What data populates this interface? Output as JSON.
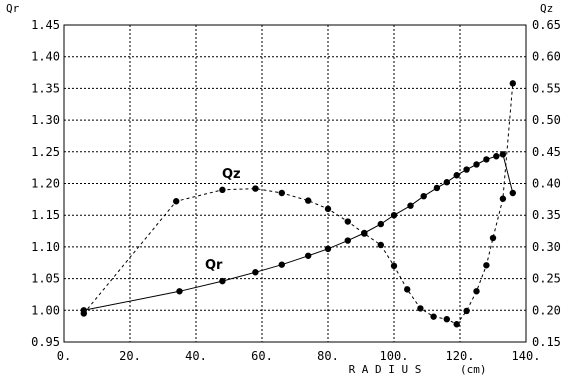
{
  "chart_data": {
    "type": "line",
    "title": "",
    "xlabel": "R A D I U S",
    "xunit": "(cm)",
    "ylabel_left": "Qr",
    "ylabel_right": "Qz",
    "xlim": [
      0,
      140
    ],
    "ylim_left": [
      0.95,
      1.45
    ],
    "ylim_right": [
      0.15,
      0.65
    ],
    "grid": true,
    "x_ticks": [
      0,
      20,
      40,
      60,
      80,
      100,
      120,
      140
    ],
    "x_tick_labels": [
      "0.",
      "20.",
      "40.",
      "60.",
      "80.",
      "100.",
      "120.",
      "140."
    ],
    "y_left_ticks": [
      0.95,
      1.0,
      1.05,
      1.1,
      1.15,
      1.2,
      1.25,
      1.3,
      1.35,
      1.4,
      1.45
    ],
    "y_left_tick_labels": [
      "0.95",
      "1.00",
      "1.05",
      "1.10",
      "1.15",
      "1.20",
      "1.25",
      "1.30",
      "1.35",
      "1.40",
      "1.45"
    ],
    "y_right_ticks": [
      0.15,
      0.2,
      0.25,
      0.3,
      0.35,
      0.4,
      0.45,
      0.5,
      0.55,
      0.6,
      0.65
    ],
    "y_right_tick_labels": [
      "0.15",
      "0.20",
      "0.25",
      "0.30",
      "0.35",
      "0.40",
      "0.45",
      "0.50",
      "0.55",
      "0.60",
      "0.65"
    ],
    "series": [
      {
        "name": "Qr",
        "axis": "left",
        "line_style": "solid",
        "x": [
          6,
          35,
          48,
          58,
          66,
          74,
          80,
          86,
          91,
          96,
          100,
          105,
          109,
          113,
          116,
          119,
          122,
          125,
          128,
          131,
          133,
          136
        ],
        "y": [
          1.0,
          1.03,
          1.046,
          1.06,
          1.072,
          1.086,
          1.097,
          1.11,
          1.122,
          1.136,
          1.15,
          1.165,
          1.18,
          1.193,
          1.202,
          1.213,
          1.222,
          1.23,
          1.238,
          1.243,
          1.246,
          1.185
        ]
      },
      {
        "name": "Qz",
        "axis": "right",
        "line_style": "dashed",
        "x": [
          6,
          34,
          48,
          58,
          66,
          74,
          80,
          86,
          91,
          96,
          100,
          104,
          108,
          112,
          116,
          119,
          122,
          125,
          128,
          130,
          133,
          136
        ],
        "y": [
          0.195,
          0.372,
          0.39,
          0.392,
          0.385,
          0.373,
          0.36,
          0.34,
          0.321,
          0.303,
          0.27,
          0.233,
          0.203,
          0.19,
          0.186,
          0.178,
          0.199,
          0.23,
          0.271,
          0.314,
          0.376,
          0.558
        ]
      }
    ]
  }
}
